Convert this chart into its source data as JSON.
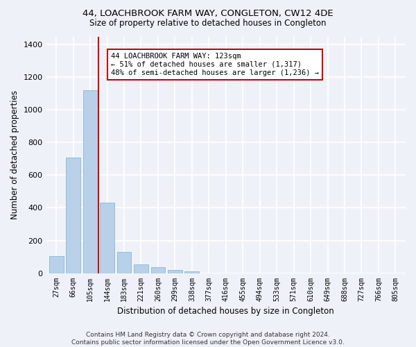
{
  "title": "44, LOACHBROOK FARM WAY, CONGLETON, CW12 4DE",
  "subtitle": "Size of property relative to detached houses in Congleton",
  "xlabel": "Distribution of detached houses by size in Congleton",
  "ylabel": "Number of detached properties",
  "bar_labels": [
    "27sqm",
    "66sqm",
    "105sqm",
    "144sqm",
    "183sqm",
    "221sqm",
    "260sqm",
    "299sqm",
    "338sqm",
    "377sqm",
    "416sqm",
    "455sqm",
    "494sqm",
    "533sqm",
    "571sqm",
    "610sqm",
    "649sqm",
    "688sqm",
    "727sqm",
    "766sqm",
    "805sqm"
  ],
  "bar_values": [
    105,
    710,
    1120,
    430,
    130,
    55,
    35,
    20,
    10,
    0,
    0,
    0,
    0,
    0,
    0,
    0,
    0,
    0,
    0,
    0,
    0
  ],
  "bar_color": "#b8d0e8",
  "bar_edge_color": "#8ab8d8",
  "vline_color": "#cc0000",
  "annotation_text": "44 LOACHBROOK FARM WAY: 123sqm\n← 51% of detached houses are smaller (1,317)\n48% of semi-detached houses are larger (1,236) →",
  "annotation_box_color": "#ffffff",
  "annotation_box_edge": "#cc0000",
  "ylim": [
    0,
    1450
  ],
  "yticks": [
    0,
    200,
    400,
    600,
    800,
    1000,
    1200,
    1400
  ],
  "background_color": "#eef2f8",
  "grid_color": "#ffffff",
  "footer": "Contains HM Land Registry data © Crown copyright and database right 2024.\nContains public sector information licensed under the Open Government Licence v3.0."
}
